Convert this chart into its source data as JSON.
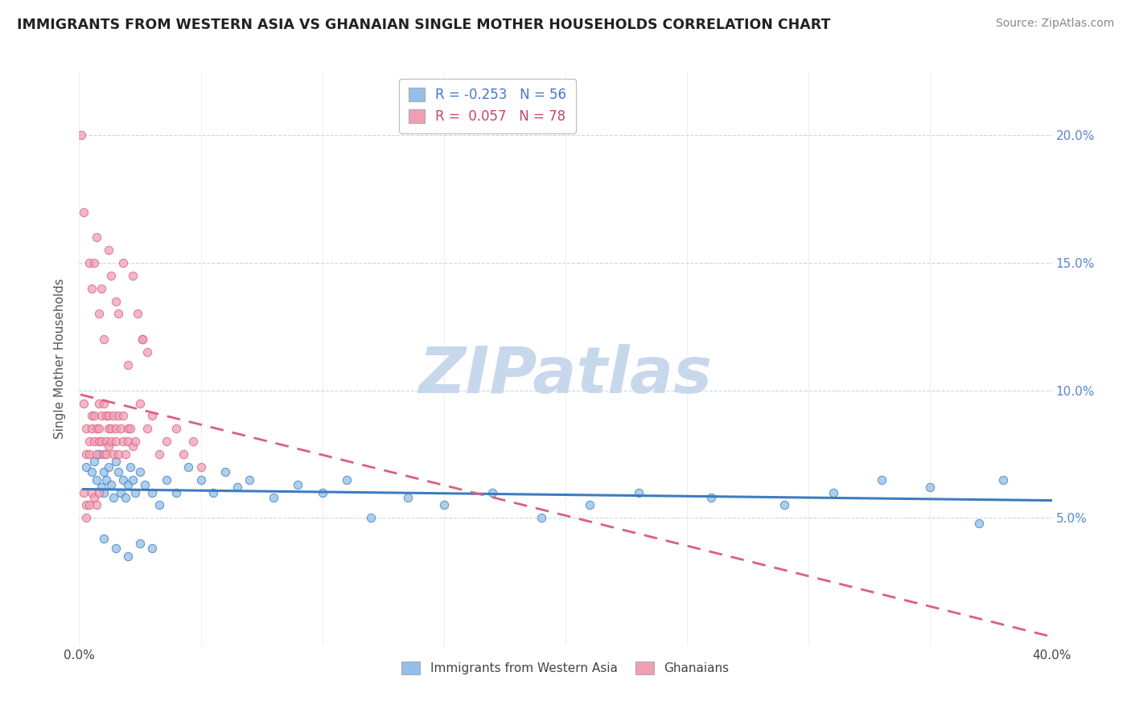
{
  "title": "IMMIGRANTS FROM WESTERN ASIA VS GHANAIAN SINGLE MOTHER HOUSEHOLDS CORRELATION CHART",
  "source": "Source: ZipAtlas.com",
  "ylabel": "Single Mother Households",
  "xlim": [
    0.0,
    0.4
  ],
  "ylim": [
    0.0,
    0.225
  ],
  "xticks": [
    0.0,
    0.05,
    0.1,
    0.15,
    0.2,
    0.25,
    0.3,
    0.35,
    0.4
  ],
  "xtick_labels": [
    "0.0%",
    "",
    "",
    "",
    "",
    "",
    "",
    "",
    "40.0%"
  ],
  "yticks_right": [
    0.05,
    0.1,
    0.15,
    0.2
  ],
  "ytick_labels_right": [
    "5.0%",
    "10.0%",
    "15.0%",
    "20.0%"
  ],
  "blue_R": -0.253,
  "blue_N": 56,
  "pink_R": 0.057,
  "pink_N": 78,
  "blue_color": "#92c0e8",
  "pink_color": "#f0a0b5",
  "blue_line_color": "#3d7dbf",
  "pink_line_color": "#d96080",
  "watermark": "ZIPatlas",
  "watermark_color": "#c8d8ec",
  "legend_label_blue": "Immigrants from Western Asia",
  "legend_label_pink": "Ghanaians",
  "blue_scatter_x": [
    0.003,
    0.005,
    0.006,
    0.007,
    0.008,
    0.009,
    0.01,
    0.01,
    0.011,
    0.012,
    0.013,
    0.014,
    0.015,
    0.016,
    0.017,
    0.018,
    0.019,
    0.02,
    0.021,
    0.022,
    0.023,
    0.025,
    0.027,
    0.03,
    0.033,
    0.036,
    0.04,
    0.045,
    0.05,
    0.055,
    0.06,
    0.065,
    0.07,
    0.08,
    0.09,
    0.1,
    0.11,
    0.12,
    0.135,
    0.15,
    0.17,
    0.19,
    0.21,
    0.23,
    0.26,
    0.29,
    0.31,
    0.33,
    0.35,
    0.37,
    0.38,
    0.01,
    0.015,
    0.02,
    0.025,
    0.03
  ],
  "blue_scatter_y": [
    0.07,
    0.068,
    0.072,
    0.065,
    0.075,
    0.062,
    0.068,
    0.06,
    0.065,
    0.07,
    0.063,
    0.058,
    0.072,
    0.068,
    0.06,
    0.065,
    0.058,
    0.063,
    0.07,
    0.065,
    0.06,
    0.068,
    0.063,
    0.06,
    0.055,
    0.065,
    0.06,
    0.07,
    0.065,
    0.06,
    0.068,
    0.062,
    0.065,
    0.058,
    0.063,
    0.06,
    0.065,
    0.05,
    0.058,
    0.055,
    0.06,
    0.05,
    0.055,
    0.06,
    0.058,
    0.055,
    0.06,
    0.065,
    0.062,
    0.048,
    0.065,
    0.042,
    0.038,
    0.035,
    0.04,
    0.038
  ],
  "pink_scatter_x": [
    0.001,
    0.002,
    0.002,
    0.003,
    0.003,
    0.004,
    0.004,
    0.005,
    0.005,
    0.006,
    0.006,
    0.007,
    0.007,
    0.008,
    0.008,
    0.008,
    0.009,
    0.009,
    0.01,
    0.01,
    0.011,
    0.011,
    0.011,
    0.012,
    0.012,
    0.012,
    0.013,
    0.013,
    0.014,
    0.014,
    0.015,
    0.015,
    0.016,
    0.016,
    0.017,
    0.018,
    0.018,
    0.019,
    0.02,
    0.02,
    0.021,
    0.022,
    0.023,
    0.025,
    0.026,
    0.028,
    0.03,
    0.033,
    0.036,
    0.04,
    0.043,
    0.047,
    0.05,
    0.004,
    0.005,
    0.006,
    0.007,
    0.008,
    0.009,
    0.01,
    0.012,
    0.013,
    0.015,
    0.016,
    0.018,
    0.02,
    0.022,
    0.024,
    0.026,
    0.028,
    0.002,
    0.003,
    0.003,
    0.004,
    0.005,
    0.006,
    0.007,
    0.008
  ],
  "pink_scatter_y": [
    0.2,
    0.17,
    0.095,
    0.085,
    0.075,
    0.08,
    0.075,
    0.09,
    0.085,
    0.08,
    0.09,
    0.085,
    0.075,
    0.095,
    0.085,
    0.08,
    0.09,
    0.08,
    0.095,
    0.075,
    0.09,
    0.08,
    0.075,
    0.085,
    0.09,
    0.078,
    0.085,
    0.08,
    0.09,
    0.075,
    0.085,
    0.08,
    0.09,
    0.075,
    0.085,
    0.09,
    0.08,
    0.075,
    0.085,
    0.08,
    0.085,
    0.078,
    0.08,
    0.095,
    0.12,
    0.085,
    0.09,
    0.075,
    0.08,
    0.085,
    0.075,
    0.08,
    0.07,
    0.15,
    0.14,
    0.15,
    0.16,
    0.13,
    0.14,
    0.12,
    0.155,
    0.145,
    0.135,
    0.13,
    0.15,
    0.11,
    0.145,
    0.13,
    0.12,
    0.115,
    0.06,
    0.055,
    0.05,
    0.055,
    0.06,
    0.058,
    0.055,
    0.06
  ]
}
